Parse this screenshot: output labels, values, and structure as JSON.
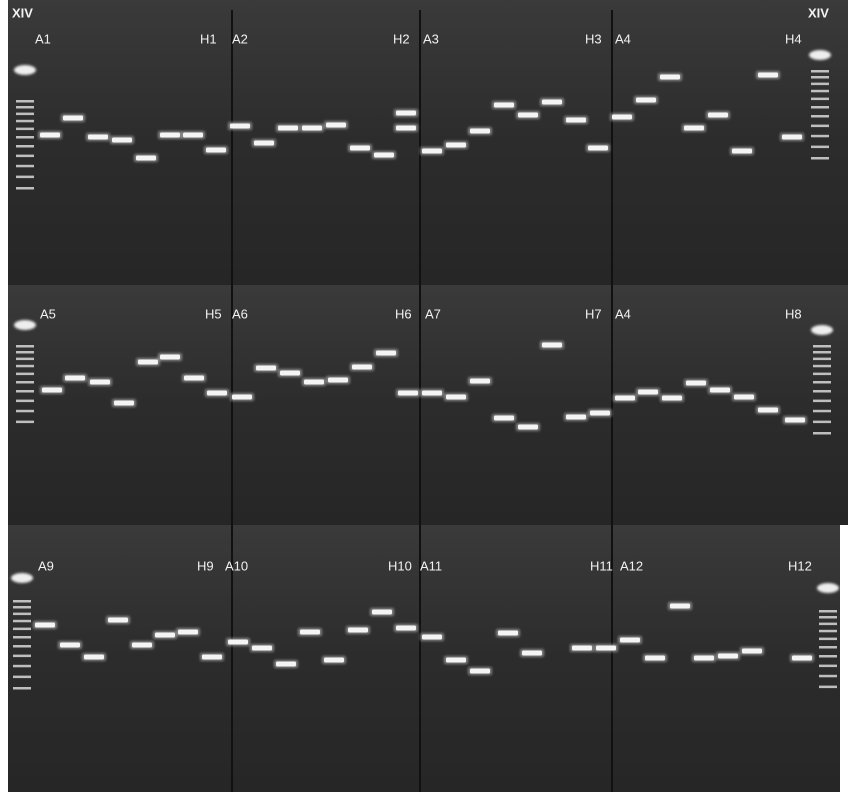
{
  "gel_labels": {
    "top_left": "XIV",
    "top_right": "XIV",
    "rows": [
      [
        "A1",
        "H1",
        "A2",
        "H2",
        "A3",
        "H3",
        "A4",
        "H4"
      ],
      [
        "A5",
        "H5",
        "A6",
        "H6",
        "A7",
        "H7",
        "A4",
        "H8"
      ],
      [
        "A9",
        "H9",
        "A10",
        "H10",
        "A11",
        "H11",
        "A12",
        "H12"
      ]
    ]
  }
}
